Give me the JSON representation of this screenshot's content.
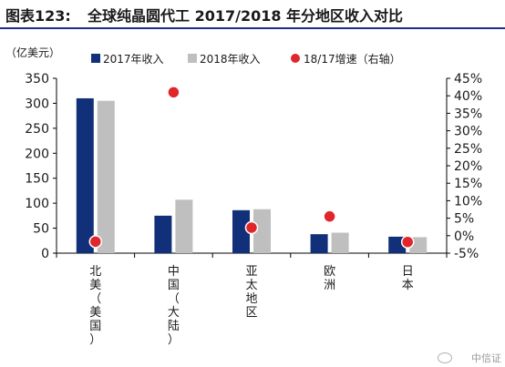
{
  "figure": {
    "label": "图表123:",
    "title": "全球纯晶圆代工 2017/2018 年分地区收入对比"
  },
  "watermark": {
    "text": "中信证"
  },
  "colors": {
    "series_2017": "#12307a",
    "series_2018": "#bfbfbf",
    "growth": "#e0262b",
    "title_rule": "#1f2f86"
  },
  "chart_data": {
    "type": "bar",
    "categories": [
      "北美（美国）",
      "中国（大陆）",
      "亚太地区",
      "欧洲",
      "日本"
    ],
    "series": [
      {
        "name": "2017年收入",
        "type": "bar",
        "axis": "left",
        "values": [
          310,
          75,
          86,
          38,
          33
        ]
      },
      {
        "name": "2018年收入",
        "type": "bar",
        "axis": "left",
        "values": [
          305,
          107,
          88,
          41,
          32
        ]
      },
      {
        "name": "18/17增速（右轴）",
        "type": "scatter",
        "axis": "right",
        "values": [
          -1.7,
          41,
          2.3,
          5.5,
          -1.8
        ]
      }
    ],
    "y_left": {
      "unit_label": "（亿美元）",
      "range": [
        0,
        350
      ],
      "ticks": [
        "0",
        "50",
        "100",
        "150",
        "200",
        "250",
        "300",
        "350"
      ]
    },
    "y_right": {
      "range": [
        -5,
        45
      ],
      "ticks": [
        "-5%",
        "0%",
        "5%",
        "10%",
        "15%",
        "20%",
        "25%",
        "30%",
        "35%",
        "40%",
        "45%"
      ]
    },
    "legend_position": "top",
    "grid": false
  }
}
